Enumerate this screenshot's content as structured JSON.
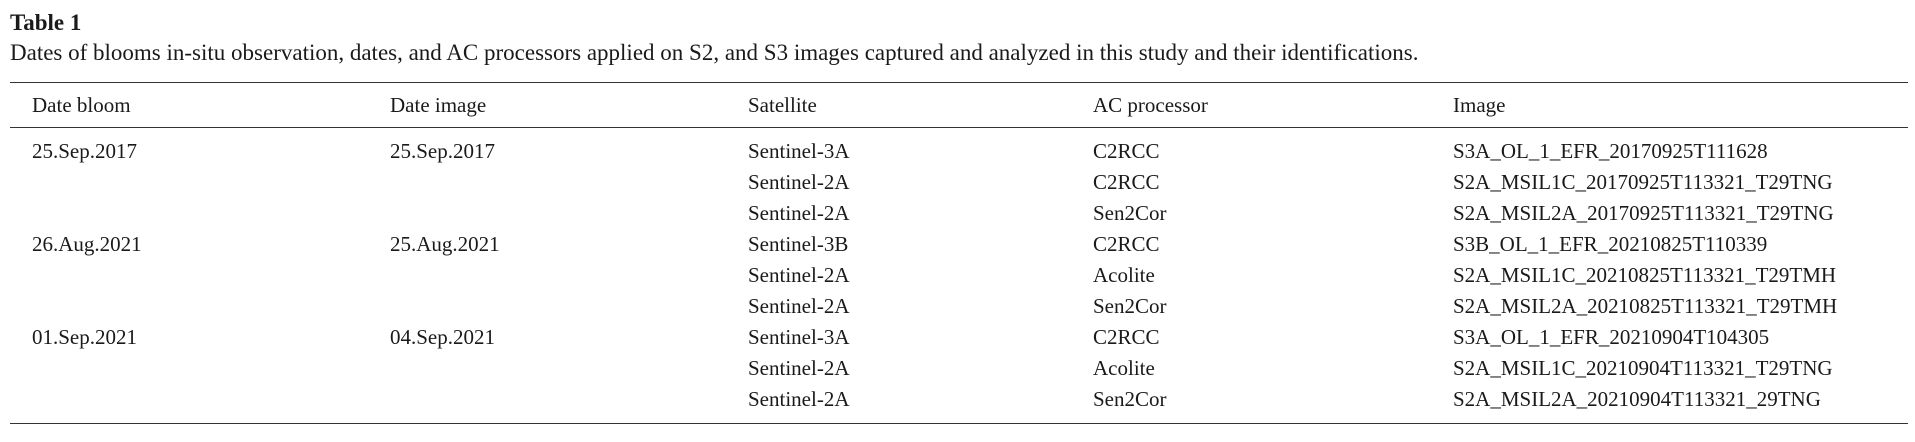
{
  "table": {
    "label": "Table 1",
    "caption": "Dates of blooms in-situ observation, dates, and AC processors applied on S2, and S3 images captured and analyzed in this study and their identifications.",
    "headers": [
      "Date bloom",
      "Date image",
      "Satellite",
      "AC processor",
      "Image"
    ],
    "rows": [
      [
        "25.Sep.2017",
        "25.Sep.2017",
        "Sentinel-3A",
        "C2RCC",
        "S3A_OL_1_EFR_20170925T111628"
      ],
      [
        "",
        "",
        "Sentinel-2A",
        "C2RCC",
        "S2A_MSIL1C_20170925T113321_T29TNG"
      ],
      [
        "",
        "",
        "Sentinel-2A",
        "Sen2Cor",
        "S2A_MSIL2A_20170925T113321_T29TNG"
      ],
      [
        "26.Aug.2021",
        "25.Aug.2021",
        "Sentinel-3B",
        "C2RCC",
        "S3B_OL_1_EFR_20210825T110339"
      ],
      [
        "",
        "",
        "Sentinel-2A",
        "Acolite",
        "S2A_MSIL1C_20210825T113321_T29TMH"
      ],
      [
        "",
        "",
        "Sentinel-2A",
        "Sen2Cor",
        "S2A_MSIL2A_20210825T113321_T29TMH"
      ],
      [
        "01.Sep.2021",
        "04.Sep.2021",
        "Sentinel-3A",
        "C2RCC",
        "S3A_OL_1_EFR_20210904T104305"
      ],
      [
        "",
        "",
        "Sentinel-2A",
        "Acolite",
        "S2A_MSIL1C_20210904T113321_T29TNG"
      ],
      [
        "",
        "",
        "Sentinel-2A",
        "Sen2Cor",
        "S2A_MSIL2A_20210904T113321_29TNG"
      ]
    ]
  }
}
